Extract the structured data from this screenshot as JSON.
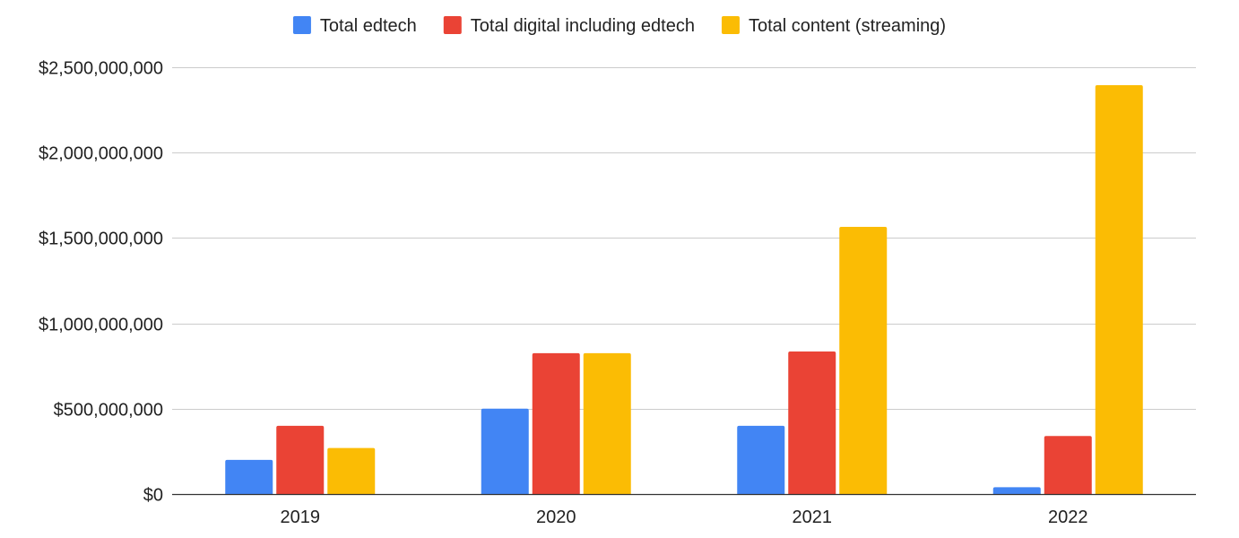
{
  "chart_data": {
    "type": "bar",
    "title": "",
    "xlabel": "",
    "ylabel": "",
    "categories": [
      "2019",
      "2020",
      "2021",
      "2022"
    ],
    "series": [
      {
        "name": "Total edtech",
        "color": "#4285F4",
        "values": [
          200000000,
          500000000,
          400000000,
          40000000
        ]
      },
      {
        "name": "Total digital including edtech",
        "color": "#EA4335",
        "values": [
          400000000,
          825000000,
          835000000,
          340000000
        ]
      },
      {
        "name": "Total content (streaming)",
        "color": "#FBBC04",
        "values": [
          270000000,
          825000000,
          1565000000,
          2395000000
        ]
      }
    ],
    "ylim": [
      0,
      2500000000
    ],
    "y_ticks": [
      {
        "value": 0,
        "label": "$0"
      },
      {
        "value": 500000000,
        "label": "$500,000,000"
      },
      {
        "value": 1000000000,
        "label": "$1,000,000,000"
      },
      {
        "value": 1500000000,
        "label": "$1,500,000,000"
      },
      {
        "value": 2000000000,
        "label": "$2,000,000,000"
      },
      {
        "value": 2500000000,
        "label": "$2,500,000,000"
      }
    ],
    "grid": true,
    "legend_position": "top-center"
  }
}
